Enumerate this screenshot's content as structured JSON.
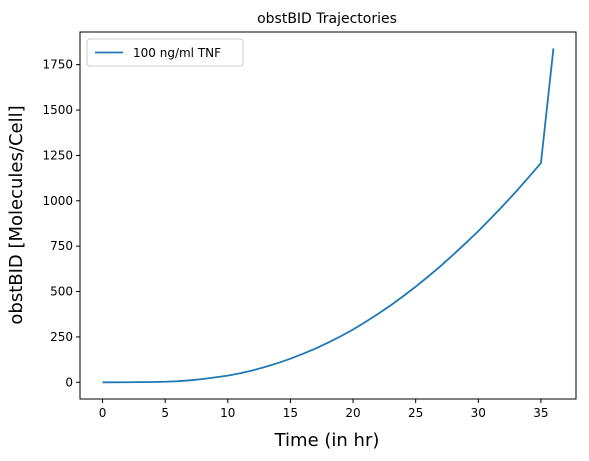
{
  "chart_data": {
    "type": "line",
    "title": "obstBID Trajectories",
    "xlabel": "Time (in hr)",
    "ylabel": "obstBID [Molecules/Cell]",
    "xlim": [
      -1.8,
      37.8
    ],
    "ylim": [
      -92,
      1930
    ],
    "xticks": [
      0,
      5,
      10,
      15,
      20,
      25,
      30,
      35
    ],
    "yticks": [
      0,
      250,
      500,
      750,
      1000,
      1250,
      1500,
      1750
    ],
    "grid": false,
    "legend_position": "top-left",
    "series": [
      {
        "name": "100 ng/ml TNF",
        "color": "#1f77b4",
        "x": [
          0,
          2,
          4,
          5,
          6,
          7,
          8,
          9,
          10,
          11,
          12,
          13,
          14,
          15,
          16,
          17,
          18,
          19,
          20,
          21,
          22,
          23,
          24,
          25,
          26,
          27,
          28,
          29,
          30,
          31,
          32,
          33,
          34,
          35,
          36
        ],
        "y": [
          0,
          0.3,
          1.5,
          3,
          6,
          11,
          18,
          27,
          37,
          50,
          66,
          85,
          106,
          130,
          157,
          186,
          218,
          253,
          291,
          333,
          377,
          424,
          474,
          527,
          583,
          641,
          703,
          767,
          833,
          903,
          975,
          1050,
          1128,
          1208,
          1840
        ]
      }
    ]
  }
}
